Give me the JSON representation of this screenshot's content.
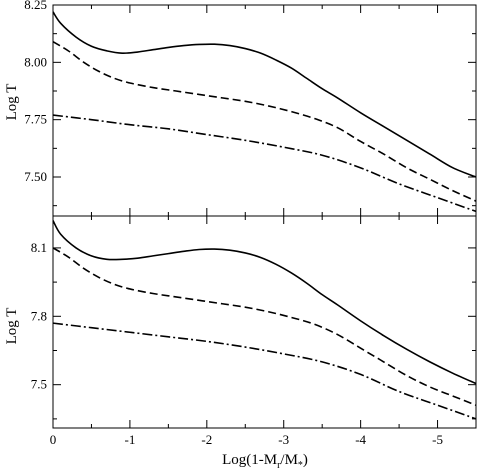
{
  "chart_data": [
    {
      "type": "line",
      "xlabel": "",
      "ylabel": "Log T",
      "xlim": [
        0,
        -5.5
      ],
      "ylim": [
        7.33,
        8.25
      ],
      "yticks": [
        7.5,
        7.75,
        8.0,
        8.25
      ],
      "ytick_labels": [
        "7.50",
        "7.75",
        "8.00",
        "8.25"
      ],
      "xticks": [
        0,
        -1,
        -2,
        -3,
        -4,
        -5
      ],
      "xtick_labels": [],
      "legend": "none",
      "grid": false,
      "series": [
        {
          "style": "solid",
          "x": [
            0,
            -0.1,
            -0.3,
            -0.5,
            -0.7,
            -0.9,
            -1.1,
            -1.3,
            -1.5,
            -1.7,
            -1.9,
            -2.1,
            -2.3,
            -2.5,
            -2.7,
            -2.9,
            -3.1,
            -3.3,
            -3.5,
            -3.7,
            -4.0,
            -4.3,
            -4.6,
            -4.9,
            -5.2,
            -5.5
          ],
          "y": [
            8.22,
            8.17,
            8.11,
            8.07,
            8.05,
            8.04,
            8.045,
            8.055,
            8.065,
            8.073,
            8.078,
            8.079,
            8.073,
            8.06,
            8.04,
            8.01,
            7.975,
            7.93,
            7.885,
            7.845,
            7.78,
            7.72,
            7.66,
            7.6,
            7.54,
            7.5
          ]
        },
        {
          "style": "dashed",
          "x": [
            0,
            -0.2,
            -0.4,
            -0.6,
            -0.8,
            -1.0,
            -1.3,
            -1.6,
            -1.9,
            -2.2,
            -2.5,
            -2.8,
            -3.1,
            -3.4,
            -3.7,
            -4.0,
            -4.3,
            -4.6,
            -4.9,
            -5.2,
            -5.5
          ],
          "y": [
            8.09,
            8.05,
            8.0,
            7.96,
            7.93,
            7.91,
            7.89,
            7.875,
            7.86,
            7.845,
            7.83,
            7.81,
            7.785,
            7.755,
            7.715,
            7.655,
            7.6,
            7.54,
            7.49,
            7.44,
            7.395
          ]
        },
        {
          "style": "dashdot",
          "x": [
            0,
            -0.5,
            -1.0,
            -1.5,
            -2.0,
            -2.5,
            -3.0,
            -3.5,
            -4.0,
            -4.5,
            -5.0,
            -5.5
          ],
          "y": [
            7.77,
            7.75,
            7.728,
            7.71,
            7.685,
            7.66,
            7.63,
            7.595,
            7.54,
            7.47,
            7.41,
            7.35
          ]
        }
      ]
    },
    {
      "type": "line",
      "xlabel": "Log(1-M_r/M_*)",
      "ylabel": "Log T",
      "xlim": [
        0,
        -5.5
      ],
      "ylim": [
        7.31,
        8.24
      ],
      "yticks": [
        7.5,
        7.8,
        8.1
      ],
      "ytick_labels": [
        "7.5",
        "7.8",
        "8.1"
      ],
      "xticks": [
        0,
        -1,
        -2,
        -3,
        -4,
        -5
      ],
      "xtick_labels": [
        "0",
        "-1",
        "-2",
        "-3",
        "-4",
        "-5"
      ],
      "legend": "none",
      "grid": false,
      "series": [
        {
          "style": "solid",
          "x": [
            0,
            -0.1,
            -0.3,
            -0.5,
            -0.7,
            -0.9,
            -1.1,
            -1.3,
            -1.5,
            -1.7,
            -1.9,
            -2.1,
            -2.3,
            -2.5,
            -2.7,
            -2.9,
            -3.1,
            -3.3,
            -3.5,
            -3.7,
            -4.0,
            -4.3,
            -4.6,
            -4.9,
            -5.2,
            -5.5
          ],
          "y": [
            8.22,
            8.16,
            8.1,
            8.065,
            8.05,
            8.05,
            8.055,
            8.065,
            8.075,
            8.085,
            8.093,
            8.095,
            8.09,
            8.078,
            8.058,
            8.028,
            7.99,
            7.945,
            7.895,
            7.85,
            7.78,
            7.715,
            7.655,
            7.6,
            7.55,
            7.505
          ]
        },
        {
          "style": "dashed",
          "x": [
            0,
            -0.2,
            -0.4,
            -0.6,
            -0.8,
            -1.0,
            -1.3,
            -1.6,
            -1.9,
            -2.2,
            -2.5,
            -2.8,
            -3.1,
            -3.4,
            -3.7,
            -4.0,
            -4.3,
            -4.6,
            -4.9,
            -5.2,
            -5.5
          ],
          "y": [
            8.1,
            8.06,
            8.01,
            7.97,
            7.94,
            7.92,
            7.9,
            7.885,
            7.87,
            7.855,
            7.84,
            7.82,
            7.795,
            7.765,
            7.72,
            7.66,
            7.6,
            7.54,
            7.49,
            7.45,
            7.41
          ]
        },
        {
          "style": "dashdot",
          "x": [
            0,
            -0.5,
            -1.0,
            -1.5,
            -2.0,
            -2.5,
            -3.0,
            -3.5,
            -4.0,
            -4.5,
            -5.0,
            -5.5
          ],
          "y": [
            7.77,
            7.75,
            7.73,
            7.71,
            7.69,
            7.665,
            7.635,
            7.6,
            7.545,
            7.47,
            7.41,
            7.35
          ]
        }
      ]
    }
  ]
}
